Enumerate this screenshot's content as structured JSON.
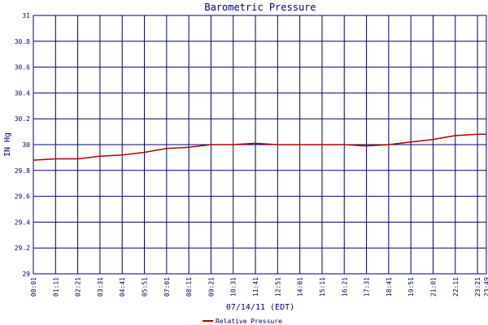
{
  "chart_data": {
    "type": "line",
    "title": "Barometric Pressure",
    "xlabel": "07/14/11 (EDT)",
    "ylabel": "IN Hg",
    "ylim": [
      29,
      31
    ],
    "yticks": [
      "29",
      "29.2",
      "29.4",
      "29.6",
      "29.8",
      "30",
      "30.2",
      "30.4",
      "30.6",
      "30.8",
      "31"
    ],
    "xticks": [
      "00:01",
      "01:11",
      "02:21",
      "03:31",
      "04:41",
      "05:51",
      "07:01",
      "08:11",
      "09:21",
      "10:31",
      "11:41",
      "12:51",
      "14:01",
      "15:11",
      "16:21",
      "17:31",
      "18:41",
      "19:51",
      "21:01",
      "22:11",
      "23:21",
      "23:49"
    ],
    "grid": true,
    "legend_position": "bottom-center",
    "colors": {
      "series": "#b00000",
      "grid": "#00006e",
      "frame": "#00006e",
      "text": "#00006e"
    },
    "series": [
      {
        "name": "Relative Pressure",
        "x": [
          "00:01",
          "01:11",
          "02:21",
          "03:31",
          "04:41",
          "05:51",
          "07:01",
          "08:11",
          "09:21",
          "10:31",
          "11:41",
          "12:51",
          "14:01",
          "15:11",
          "16:21",
          "17:31",
          "18:41",
          "19:51",
          "21:01",
          "22:11",
          "23:21",
          "23:49"
        ],
        "values": [
          29.88,
          29.89,
          29.89,
          29.91,
          29.92,
          29.94,
          29.97,
          29.98,
          30.0,
          30.0,
          30.01,
          30.0,
          30.0,
          30.0,
          30.0,
          29.99,
          30.0,
          30.02,
          30.04,
          30.07,
          30.08,
          30.08
        ]
      }
    ]
  }
}
